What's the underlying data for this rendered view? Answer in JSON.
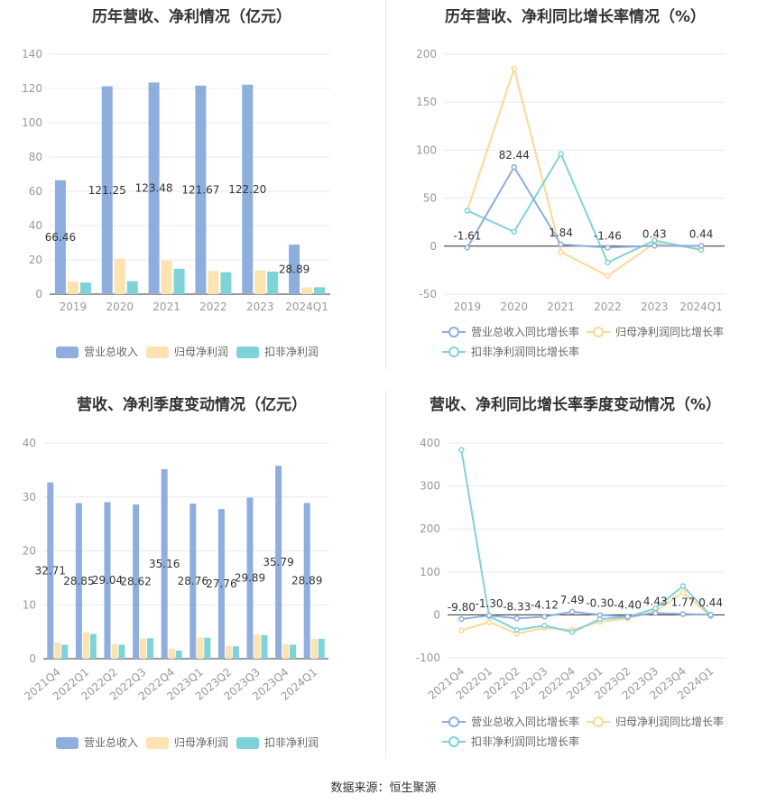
{
  "source": "数据来源：恒生聚源",
  "colors": {
    "revenue": "#8eaedd",
    "net_profit": "#fde2b2",
    "deducted": "#7fd3d8",
    "line_revenue": "#8eaedd",
    "line_net": "#fcd894",
    "line_deducted": "#7fd3d8",
    "axis": "#999999",
    "grid": "#e8e8f0"
  },
  "chart_data": [
    {
      "type": "bar",
      "title": "历年营收、净利情况（亿元）",
      "categories": [
        "2019",
        "2020",
        "2021",
        "2022",
        "2023",
        "2024Q1"
      ],
      "ylim": [
        0,
        140
      ],
      "yticks": [
        0,
        20,
        40,
        60,
        80,
        100,
        120,
        140
      ],
      "series": [
        {
          "name": "营业总收入",
          "values": [
            66.46,
            121.25,
            123.48,
            121.67,
            122.2,
            28.89
          ],
          "labels": [
            "66.46",
            "121.25",
            "123.48",
            "121.67",
            "122.20",
            "28.89"
          ]
        },
        {
          "name": "归母净利润",
          "values": [
            7.4,
            20.8,
            19.5,
            13.5,
            13.8,
            4.0
          ]
        },
        {
          "name": "扣非净利润",
          "values": [
            6.8,
            7.6,
            14.8,
            12.8,
            13.2,
            4.0
          ]
        }
      ],
      "legend": "bottom",
      "grid": true
    },
    {
      "type": "line",
      "title": "历年营收、净利同比增长率情况（%）",
      "categories": [
        "2019",
        "2020",
        "2021",
        "2022",
        "2023",
        "2024Q1"
      ],
      "ylim": [
        -50,
        200
      ],
      "yticks": [
        -50,
        0,
        50,
        100,
        150,
        200
      ],
      "series": [
        {
          "name": "营业总收入同比增长率",
          "values": [
            -1.61,
            82.44,
            1.84,
            -1.46,
            0.43,
            0.44
          ],
          "labels": [
            "-1.61",
            "82.44",
            "1.84",
            "-1.46",
            "0.43",
            "0.44"
          ]
        },
        {
          "name": "归母净利润同比增长率",
          "values": [
            37,
            185,
            -6,
            -31,
            3,
            -3
          ]
        },
        {
          "name": "扣非净利润同比增长率",
          "values": [
            37,
            15,
            96,
            -17,
            6,
            -4
          ]
        }
      ],
      "legend": "bottom",
      "grid": true
    },
    {
      "type": "bar",
      "title": "营收、净利季度变动情况（亿元）",
      "categories": [
        "2021Q4",
        "2022Q1",
        "2022Q2",
        "2022Q3",
        "2022Q4",
        "2023Q1",
        "2023Q2",
        "2023Q3",
        "2023Q4",
        "2024Q1"
      ],
      "ylim": [
        0,
        40
      ],
      "yticks": [
        0,
        10,
        20,
        30,
        40
      ],
      "series": [
        {
          "name": "营业总收入",
          "values": [
            32.71,
            28.85,
            29.04,
            28.62,
            35.16,
            28.76,
            27.76,
            29.89,
            35.79,
            28.89
          ],
          "labels": [
            "32.71",
            "28.85",
            "29.04",
            "28.62",
            "35.16",
            "28.76",
            "27.76",
            "29.89",
            "35.79",
            "28.89"
          ]
        },
        {
          "name": "归母净利润",
          "values": [
            3.0,
            4.9,
            2.7,
            3.8,
            1.9,
            3.9,
            2.4,
            4.5,
            2.7,
            3.7
          ]
        },
        {
          "name": "扣非净利润",
          "values": [
            2.6,
            4.6,
            2.6,
            3.8,
            1.5,
            3.9,
            2.3,
            4.4,
            2.6,
            3.7
          ]
        }
      ],
      "legend": "bottom",
      "grid": true
    },
    {
      "type": "line",
      "title": "营收、净利同比增长率季度变动情况（%）",
      "categories": [
        "2021Q4",
        "2022Q1",
        "2022Q2",
        "2022Q3",
        "2022Q4",
        "2023Q1",
        "2023Q2",
        "2023Q3",
        "2023Q4",
        "2024Q1"
      ],
      "ylim": [
        -100,
        400
      ],
      "yticks": [
        -100,
        0,
        100,
        200,
        300,
        400
      ],
      "series": [
        {
          "name": "营业总收入同比增长率",
          "values": [
            -9.8,
            -1.3,
            -8.33,
            -4.12,
            7.49,
            -0.3,
            -4.4,
            4.43,
            1.77,
            0.44
          ],
          "labels": [
            "-9.80",
            "-1.30",
            "-8.33",
            "-4.12",
            "7.49",
            "-0.30",
            "-4.40",
            "4.43",
            "1.77",
            "0.44"
          ]
        },
        {
          "name": "归母净利润同比增长率",
          "values": [
            -36,
            -17,
            -44,
            -30,
            -35,
            -16,
            -8,
            8,
            52,
            -3
          ]
        },
        {
          "name": "扣非净利润同比增长率",
          "values": [
            384,
            -3,
            -35,
            -25,
            -40,
            -10,
            -5,
            15,
            67,
            -2
          ]
        }
      ],
      "legend": "bottom",
      "grid": true
    }
  ]
}
